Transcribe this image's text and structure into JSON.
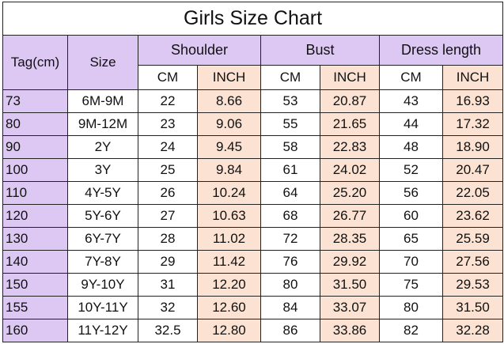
{
  "table": {
    "title": "Girls Size Chart",
    "header": {
      "tag": "Tag(cm)",
      "size": "Size",
      "groups": [
        "Shoulder",
        "Bust",
        "Dress length"
      ],
      "units": [
        "CM",
        "INCH",
        "CM",
        "INCH",
        "CM",
        "INCH"
      ]
    },
    "rows": [
      [
        "73",
        "6M-9M",
        "22",
        "8.66",
        "53",
        "20.87",
        "43",
        "16.93"
      ],
      [
        "80",
        "9M-12M",
        "23",
        "9.06",
        "55",
        "21.65",
        "44",
        "17.32"
      ],
      [
        "90",
        "2Y",
        "24",
        "9.45",
        "58",
        "22.83",
        "48",
        "18.90"
      ],
      [
        "100",
        "3Y",
        "25",
        "9.84",
        "61",
        "24.02",
        "52",
        "20.47"
      ],
      [
        "110",
        "4Y-5Y",
        "26",
        "10.24",
        "64",
        "25.20",
        "56",
        "22.05"
      ],
      [
        "120",
        "5Y-6Y",
        "27",
        "10.63",
        "68",
        "26.77",
        "60",
        "23.62"
      ],
      [
        "130",
        "6Y-7Y",
        "28",
        "11.02",
        "72",
        "28.35",
        "65",
        "25.59"
      ],
      [
        "140",
        "7Y-8Y",
        "29",
        "11.42",
        "76",
        "29.92",
        "70",
        "27.56"
      ],
      [
        "150",
        "9Y-10Y",
        "31",
        "12.20",
        "80",
        "31.50",
        "75",
        "29.53"
      ],
      [
        "155",
        "10Y-11Y",
        "32",
        "12.60",
        "84",
        "33.07",
        "80",
        "31.50"
      ],
      [
        "160",
        "11Y-12Y",
        "32.5",
        "12.80",
        "86",
        "33.86",
        "82",
        "32.28"
      ]
    ]
  }
}
